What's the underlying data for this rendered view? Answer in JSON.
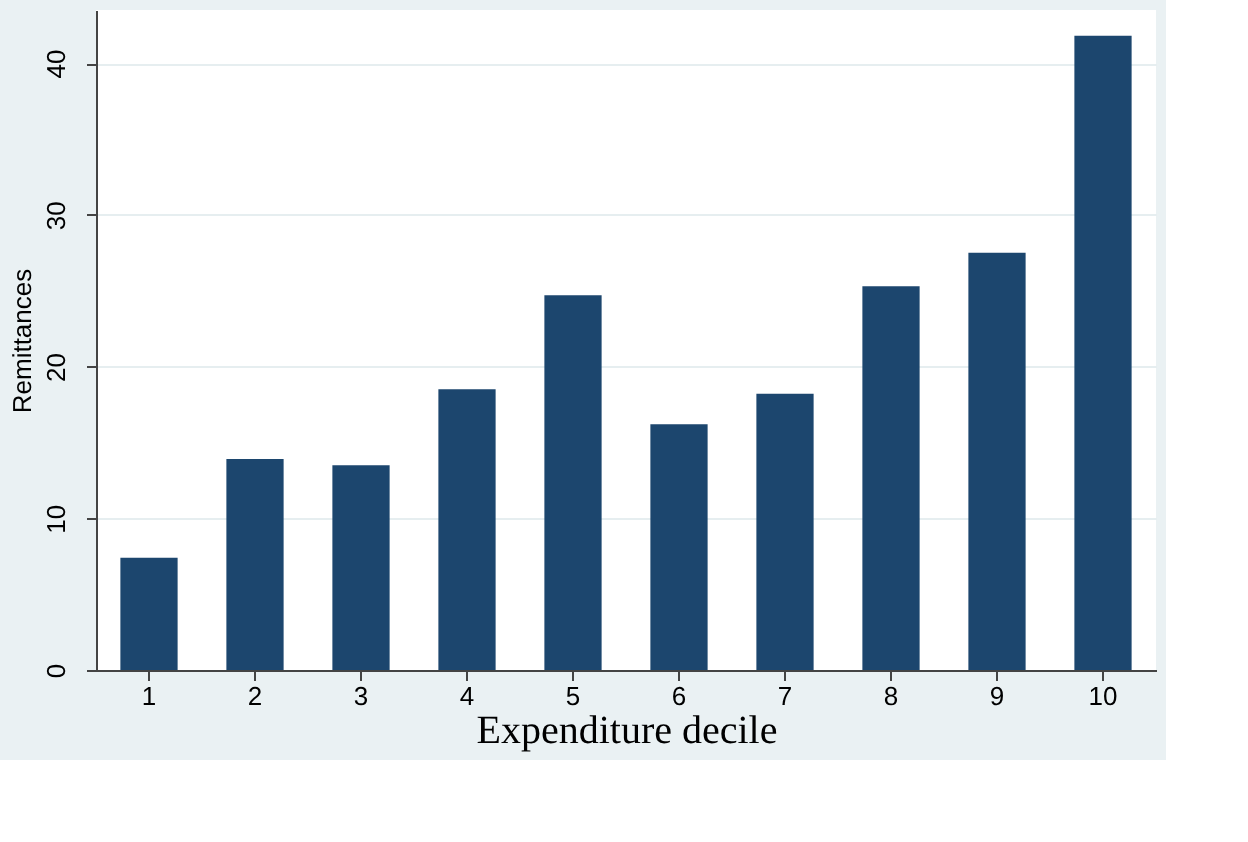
{
  "chart_data": {
    "type": "bar",
    "xlabel": "Expenditure decile",
    "ylabel": "Remittances",
    "categories": [
      "1",
      "2",
      "3",
      "4",
      "5",
      "6",
      "7",
      "8",
      "9",
      "10"
    ],
    "values": [
      7.4,
      13.9,
      13.5,
      18.5,
      24.7,
      16.2,
      18.2,
      25.3,
      27.5,
      41.8
    ],
    "color": "#1c466e",
    "ylim": [
      0,
      43.5
    ],
    "yticks": [
      0,
      10,
      20,
      30,
      40
    ],
    "grid": "y"
  }
}
